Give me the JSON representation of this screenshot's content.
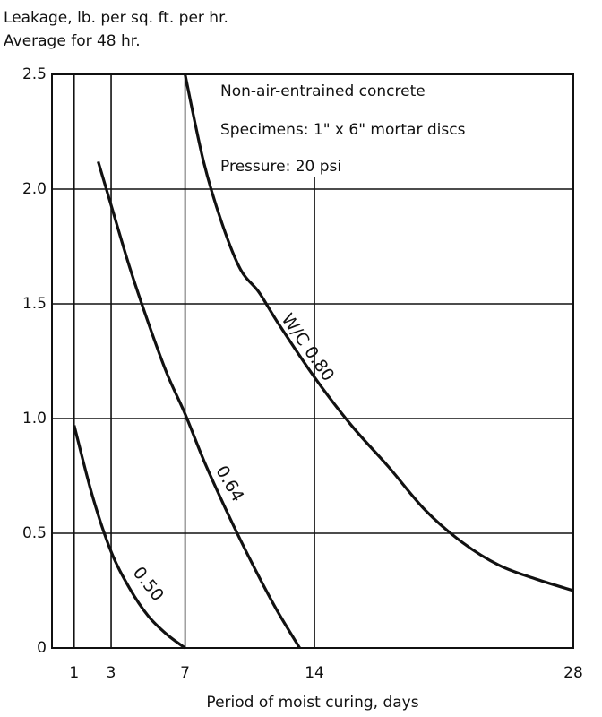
{
  "chart_data": {
    "type": "line",
    "ylabel": [
      "Leakage, lb. per sq. ft. per hr.",
      "Average for 48 hr."
    ],
    "xlabel": "Period of moist curing, days",
    "annotations": [
      "Non-air-entrained concrete",
      "Specimens: 1\" x 6\" mortar discs",
      "Pressure: 20 psi"
    ],
    "xlim": [
      -0.2,
      28
    ],
    "ylim": [
      0,
      2.5
    ],
    "xticks": [
      1,
      3,
      7,
      14,
      28
    ],
    "yticks": [
      0,
      0.5,
      {
        "value": 1,
        "label": "1.0"
      },
      1.5,
      {
        "value": 2,
        "label": "2.0"
      },
      2.5
    ],
    "grid": true,
    "series": [
      {
        "name": "0.50",
        "color": "#111111",
        "x": [
          1,
          2,
          3,
          4,
          5,
          6,
          7
        ],
        "values": [
          0.97,
          0.66,
          0.42,
          0.26,
          0.14,
          0.06,
          0
        ]
      },
      {
        "name": "0.64",
        "color": "#111111",
        "x": [
          2.3,
          3,
          4,
          5,
          6,
          7,
          8,
          9,
          10,
          11,
          12,
          13.2
        ],
        "values": [
          2.12,
          1.93,
          1.66,
          1.42,
          1.2,
          1.02,
          0.82,
          0.64,
          0.47,
          0.31,
          0.16,
          0
        ]
      },
      {
        "name": "W/C 0.80",
        "color": "#111111",
        "x": [
          7,
          8,
          9,
          10,
          11,
          12,
          14,
          16,
          18,
          20,
          22,
          24,
          26,
          28
        ],
        "values": [
          2.5,
          2.12,
          1.85,
          1.65,
          1.55,
          1.42,
          1.18,
          0.97,
          0.79,
          0.6,
          0.46,
          0.36,
          0.3,
          0.25
        ]
      }
    ]
  }
}
